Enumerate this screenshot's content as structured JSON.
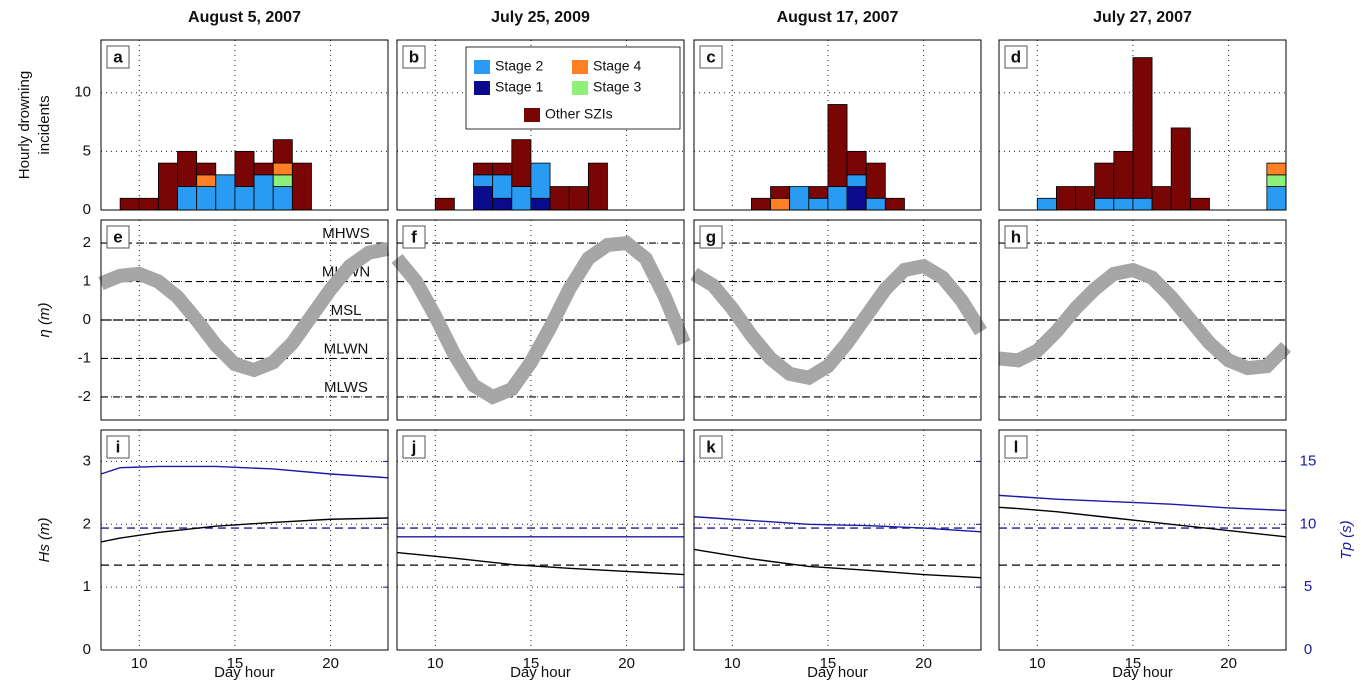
{
  "chart_data": [
    {
      "type": "bar",
      "title": "August 5, 2007",
      "label": "a",
      "ylabel": [
        "Hourly drowning",
        "incidents"
      ],
      "yticklabels": true,
      "x": [
        9,
        10,
        11,
        12,
        13,
        14,
        15,
        16,
        17,
        18
      ],
      "series": [
        {
          "color": "#0a0a8c",
          "values": [
            0,
            0,
            0,
            0,
            0,
            0,
            0,
            0,
            0,
            0
          ]
        },
        {
          "color": "#2a9bf2",
          "values": [
            0,
            0,
            0,
            2,
            2,
            3,
            2,
            3,
            2,
            0
          ]
        },
        {
          "color": "#8cf07a",
          "values": [
            0,
            0,
            0,
            0,
            0,
            0,
            0,
            0,
            1,
            0
          ]
        },
        {
          "color": "#ff7f24",
          "values": [
            0,
            0,
            0,
            0,
            1,
            0,
            0,
            0,
            1,
            0
          ]
        },
        {
          "color": "#7a0505",
          "values": [
            1,
            1,
            4,
            3,
            1,
            0,
            3,
            1,
            2,
            4
          ]
        }
      ],
      "xlim": [
        8,
        23
      ],
      "xticks": [
        10,
        15,
        20
      ],
      "ylim": [
        0,
        14.5
      ],
      "yticks": [
        0,
        5,
        10
      ],
      "grid": true
    },
    {
      "type": "bar",
      "title": "July 25, 2009",
      "label": "b",
      "legend": "upper right",
      "x": [
        10,
        12,
        13,
        14,
        15,
        16,
        17,
        18
      ],
      "series": [
        {
          "name": "Stage 1",
          "color": "#0a0a8c",
          "values": [
            0,
            2,
            1,
            0,
            1,
            0,
            0,
            0
          ]
        },
        {
          "name": "Stage 2",
          "color": "#2a9bf2",
          "values": [
            0,
            1,
            2,
            2,
            3,
            0,
            0,
            0
          ]
        },
        {
          "name": "Stage 3",
          "color": "#8cf07a",
          "values": [
            0,
            0,
            0,
            0,
            0,
            0,
            0,
            0
          ]
        },
        {
          "name": "Stage 4",
          "color": "#ff7f24",
          "values": [
            0,
            0,
            0,
            0,
            0,
            0,
            0,
            0
          ]
        },
        {
          "name": "Other SZIs",
          "color": "#7a0505",
          "values": [
            1,
            1,
            1,
            4,
            0,
            2,
            2,
            4
          ]
        }
      ],
      "xlim": [
        8,
        23
      ],
      "xticks": [
        10,
        15,
        20
      ],
      "ylim": [
        0,
        14.5
      ],
      "yticks": [
        0,
        5,
        10
      ],
      "grid": true
    },
    {
      "type": "bar",
      "title": "August 17, 2007",
      "label": "c",
      "x": [
        11,
        12,
        13,
        14,
        15,
        16,
        17,
        18
      ],
      "series": [
        {
          "color": "#0a0a8c",
          "values": [
            0,
            0,
            0,
            0,
            0,
            2,
            0,
            0
          ]
        },
        {
          "color": "#2a9bf2",
          "values": [
            0,
            0,
            2,
            1,
            2,
            1,
            1,
            0
          ]
        },
        {
          "color": "#8cf07a",
          "values": [
            0,
            0,
            0,
            0,
            0,
            0,
            0,
            0
          ]
        },
        {
          "color": "#ff7f24",
          "values": [
            0,
            1,
            0,
            0,
            0,
            0,
            0,
            0
          ]
        },
        {
          "color": "#7a0505",
          "values": [
            1,
            1,
            0,
            1,
            7,
            2,
            3,
            1
          ]
        }
      ],
      "xlim": [
        8,
        23
      ],
      "xticks": [
        10,
        15,
        20
      ],
      "ylim": [
        0,
        14.5
      ],
      "yticks": [
        0,
        5,
        10
      ],
      "grid": true
    },
    {
      "type": "bar",
      "title": "July 27, 2007",
      "label": "d",
      "x": [
        10,
        11,
        12,
        13,
        14,
        15,
        16,
        17,
        18,
        22
      ],
      "series": [
        {
          "color": "#0a0a8c",
          "values": [
            0,
            0,
            0,
            0,
            0,
            0,
            0,
            0,
            0,
            0
          ]
        },
        {
          "color": "#2a9bf2",
          "values": [
            1,
            0,
            0,
            1,
            1,
            1,
            0,
            0,
            0,
            2
          ]
        },
        {
          "color": "#8cf07a",
          "values": [
            0,
            0,
            0,
            0,
            0,
            0,
            0,
            0,
            0,
            1
          ]
        },
        {
          "color": "#ff7f24",
          "values": [
            0,
            0,
            0,
            0,
            0,
            0,
            0,
            0,
            0,
            1
          ]
        },
        {
          "color": "#7a0505",
          "values": [
            0,
            2,
            2,
            3,
            4,
            12,
            2,
            7,
            1,
            0
          ]
        }
      ],
      "xlim": [
        8,
        23
      ],
      "xticks": [
        10,
        15,
        20
      ],
      "ylim": [
        0,
        14.5
      ],
      "yticks": [
        0,
        5,
        10
      ],
      "grid": true
    },
    {
      "type": "band",
      "label": "e",
      "ylabel": "η (m)",
      "yticklabels": true,
      "color": "#a6a6a6",
      "x": [
        8,
        9,
        10,
        11,
        12,
        13,
        14,
        15,
        16,
        17,
        18,
        19,
        20,
        21,
        22,
        23
      ],
      "values": [
        0.95,
        1.15,
        1.2,
        1.0,
        0.6,
        0.0,
        -0.65,
        -1.15,
        -1.3,
        -1.1,
        -0.6,
        0.1,
        0.8,
        1.4,
        1.75,
        1.85
      ],
      "levels": [
        {
          "value": 2,
          "label": "MHWS"
        },
        {
          "value": 1,
          "label": "MHWN"
        },
        {
          "value": 0,
          "label": "MSL"
        },
        {
          "value": -1,
          "label": "MLWN"
        },
        {
          "value": -2,
          "label": "MLWS"
        }
      ],
      "xlim": [
        8,
        23
      ],
      "xticks": [
        10,
        15,
        20
      ],
      "ylim": [
        -2.6,
        2.6
      ],
      "yticks": [
        -2,
        -1,
        0,
        1,
        2
      ],
      "grid": true
    },
    {
      "type": "band",
      "label": "f",
      "color": "#a6a6a6",
      "x": [
        8,
        9,
        10,
        11,
        12,
        13,
        14,
        15,
        16,
        17,
        18,
        19,
        20,
        21,
        22,
        23
      ],
      "values": [
        1.6,
        1.0,
        0.1,
        -0.9,
        -1.7,
        -2.0,
        -1.8,
        -1.1,
        -0.2,
        0.8,
        1.6,
        1.95,
        2.0,
        1.6,
        0.6,
        -0.6
      ],
      "levels": [
        2,
        1,
        0,
        -1,
        -2
      ],
      "xlim": [
        8,
        23
      ],
      "xticks": [
        10,
        15,
        20
      ],
      "ylim": [
        -2.6,
        2.6
      ],
      "yticks": [
        -2,
        -1,
        0,
        1,
        2
      ],
      "grid": true
    },
    {
      "type": "band",
      "label": "g",
      "color": "#a6a6a6",
      "x": [
        8,
        9,
        10,
        11,
        12,
        13,
        14,
        15,
        16,
        17,
        18,
        19,
        20,
        21,
        22,
        23
      ],
      "values": [
        1.2,
        0.9,
        0.3,
        -0.4,
        -1.0,
        -1.4,
        -1.5,
        -1.2,
        -0.6,
        0.1,
        0.8,
        1.3,
        1.4,
        1.1,
        0.5,
        -0.3
      ],
      "levels": [
        2,
        1,
        0,
        -1,
        -2
      ],
      "xlim": [
        8,
        23
      ],
      "xticks": [
        10,
        15,
        20
      ],
      "ylim": [
        -2.6,
        2.6
      ],
      "yticks": [
        -2,
        -1,
        0,
        1,
        2
      ],
      "grid": true
    },
    {
      "type": "band",
      "label": "h",
      "color": "#a6a6a6",
      "x": [
        8,
        9,
        10,
        11,
        12,
        13,
        14,
        15,
        16,
        17,
        18,
        19,
        20,
        21,
        22,
        23
      ],
      "values": [
        -1.0,
        -1.05,
        -0.8,
        -0.3,
        0.3,
        0.8,
        1.2,
        1.3,
        1.1,
        0.6,
        0.0,
        -0.6,
        -1.05,
        -1.25,
        -1.2,
        -0.7
      ],
      "levels": [
        2,
        1,
        0,
        -1,
        -2
      ],
      "xlim": [
        8,
        23
      ],
      "xticks": [
        10,
        15,
        20
      ],
      "ylim": [
        -2.6,
        2.6
      ],
      "yticks": [
        -2,
        -1,
        0,
        1,
        2
      ],
      "grid": true
    },
    {
      "type": "line",
      "label": "i",
      "ylabel": "Hs (m)",
      "yticklabels": true,
      "xlabel": "Day hour",
      "xticklabels": true,
      "x": [
        8,
        9,
        11,
        14,
        17,
        20,
        23
      ],
      "series": [
        {
          "color": "#000000",
          "values": [
            1.72,
            1.78,
            1.87,
            1.97,
            2.03,
            2.08,
            2.1
          ]
        },
        {
          "color": "#1a1aa6",
          "axis": "y2",
          "values": [
            14.0,
            14.5,
            14.6,
            14.6,
            14.4,
            14.0,
            13.7
          ]
        }
      ],
      "hlines": [
        {
          "value": 1.35,
          "color": "#000000"
        },
        {
          "value": 9.7,
          "axis": "y2",
          "color": "#1a1aa6"
        }
      ],
      "xlim": [
        8,
        23
      ],
      "xticks": [
        10,
        15,
        20
      ],
      "ylim": [
        0,
        3.5
      ],
      "yticks": [
        0,
        1,
        2,
        3
      ],
      "y2lim": [
        0,
        17.5
      ],
      "y2ticks": [
        0,
        5,
        10,
        15
      ],
      "grid": true
    },
    {
      "type": "line",
      "label": "j",
      "xlabel": "Day hour",
      "xticklabels": true,
      "x": [
        8,
        9,
        11,
        14,
        17,
        20,
        23
      ],
      "series": [
        {
          "color": "#000000",
          "values": [
            1.55,
            1.52,
            1.46,
            1.36,
            1.3,
            1.25,
            1.2
          ]
        },
        {
          "color": "#1a1aa6",
          "axis": "y2",
          "values": [
            9.0,
            9.0,
            9.0,
            9.0,
            9.0,
            9.0,
            9.0
          ]
        }
      ],
      "hlines": [
        {
          "value": 1.35,
          "color": "#000000"
        },
        {
          "value": 9.7,
          "axis": "y2",
          "color": "#1a1aa6"
        }
      ],
      "xlim": [
        8,
        23
      ],
      "xticks": [
        10,
        15,
        20
      ],
      "ylim": [
        0,
        3.5
      ],
      "yticks": [
        0,
        1,
        2,
        3
      ],
      "y2lim": [
        0,
        17.5
      ],
      "y2ticks": [
        0,
        5,
        10,
        15
      ],
      "grid": true
    },
    {
      "type": "line",
      "label": "k",
      "xlabel": "Day hour",
      "xticklabels": true,
      "x": [
        8,
        9,
        11,
        14,
        17,
        20,
        23
      ],
      "series": [
        {
          "color": "#000000",
          "values": [
            1.6,
            1.55,
            1.45,
            1.33,
            1.27,
            1.2,
            1.15
          ]
        },
        {
          "color": "#1a1aa6",
          "axis": "y2",
          "values": [
            10.6,
            10.5,
            10.3,
            10.0,
            9.9,
            9.7,
            9.4
          ]
        }
      ],
      "hlines": [
        {
          "value": 1.35,
          "color": "#000000"
        },
        {
          "value": 9.7,
          "axis": "y2",
          "color": "#1a1aa6"
        }
      ],
      "xlim": [
        8,
        23
      ],
      "xticks": [
        10,
        15,
        20
      ],
      "ylim": [
        0,
        3.5
      ],
      "yticks": [
        0,
        1,
        2,
        3
      ],
      "y2lim": [
        0,
        17.5
      ],
      "y2ticks": [
        0,
        5,
        10,
        15
      ],
      "grid": true
    },
    {
      "type": "line",
      "label": "l",
      "xlabel": "Day hour",
      "xticklabels": true,
      "y2label": "Tp (s)",
      "y2ticklabels": true,
      "x": [
        8,
        9,
        11,
        14,
        17,
        20,
        23
      ],
      "series": [
        {
          "color": "#000000",
          "values": [
            2.27,
            2.25,
            2.2,
            2.1,
            2.0,
            1.9,
            1.8
          ]
        },
        {
          "color": "#1a1aa6",
          "axis": "y2",
          "values": [
            12.3,
            12.2,
            12.0,
            11.8,
            11.6,
            11.3,
            11.1
          ]
        }
      ],
      "hlines": [
        {
          "value": 1.35,
          "color": "#000000"
        },
        {
          "value": 9.7,
          "axis": "y2",
          "color": "#1a1aa6"
        }
      ],
      "xlim": [
        8,
        23
      ],
      "xticks": [
        10,
        15,
        20
      ],
      "ylim": [
        0,
        3.5
      ],
      "yticks": [
        0,
        1,
        2,
        3
      ],
      "y2lim": [
        0,
        17.5
      ],
      "y2ticks": [
        0,
        5,
        10,
        15
      ],
      "grid": true
    }
  ]
}
